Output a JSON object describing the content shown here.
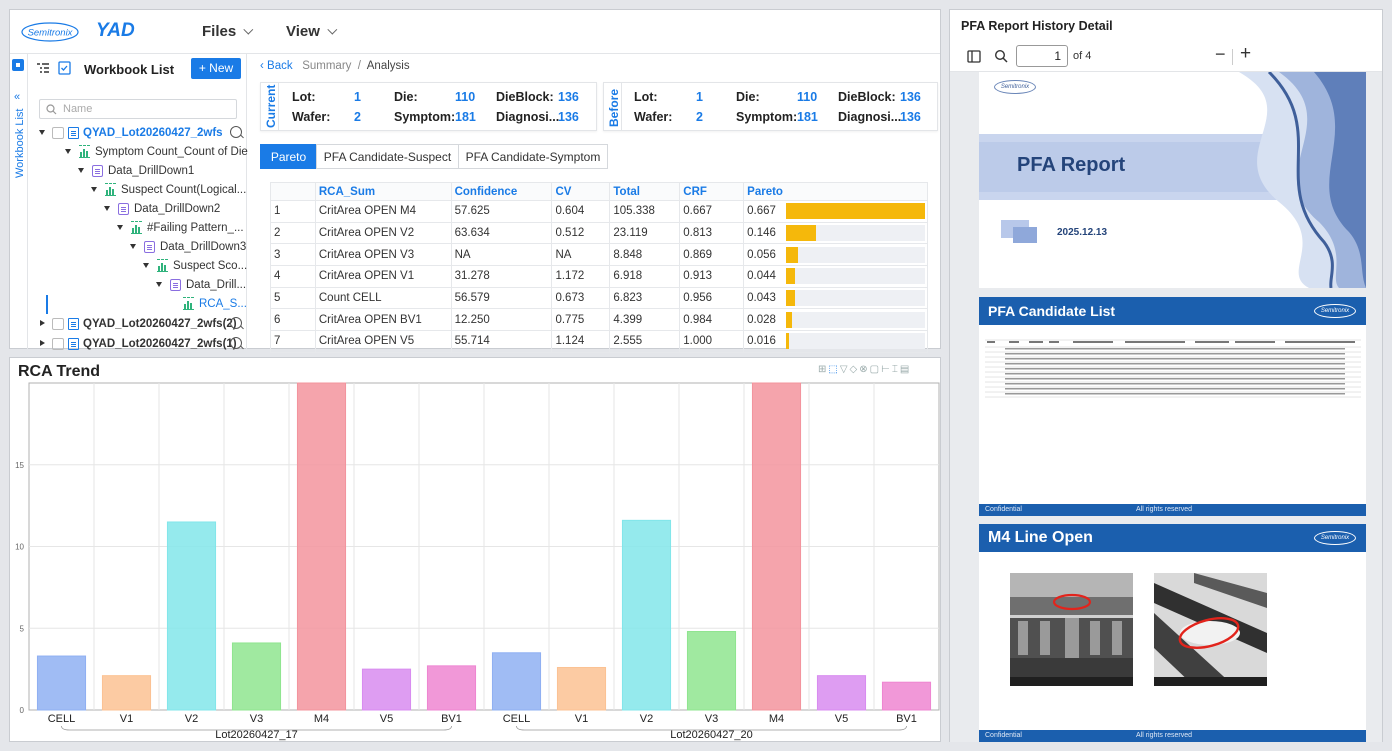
{
  "app": {
    "logo_text": "Semitronix",
    "brand": "YAD",
    "menus": [
      "Files",
      "View"
    ]
  },
  "sidebar": {
    "title": "Workbook List",
    "new_label": "+ New",
    "rail_label": "Workbook List",
    "search_placeholder": "Name",
    "tree": [
      {
        "label": "QYAD_Lot20260427_2wfs",
        "type": "doc"
      },
      {
        "label": "Symptom Count_Count of Die",
        "type": "bar"
      },
      {
        "label": "Data_DrillDown1",
        "type": "ds"
      },
      {
        "label": "Suspect Count(Logical...",
        "type": "bar"
      },
      {
        "label": "Data_DrillDown2",
        "type": "ds"
      },
      {
        "label": "#Failing Pattern_...",
        "type": "bar"
      },
      {
        "label": "Data_DrillDown3",
        "type": "ds"
      },
      {
        "label": "Suspect Sco...",
        "type": "bar"
      },
      {
        "label": "Data_Drill...",
        "type": "ds"
      },
      {
        "label": "RCA_S...",
        "type": "bar"
      },
      {
        "label": "QYAD_Lot20260427_2wfs(2)",
        "type": "doc"
      },
      {
        "label": "QYAD_Lot20260427_2wfs(1)",
        "type": "doc"
      }
    ]
  },
  "breadcrumb": {
    "back": "Back",
    "summary": "Summary",
    "sep": "/",
    "current": "Analysis"
  },
  "current": {
    "label": "Current",
    "lot_k": "Lot:",
    "lot_v": "1",
    "wafer_k": "Wafer:",
    "wafer_v": "2",
    "die_k": "Die:",
    "die_v": "110",
    "symptom_k": "Symptom:",
    "symptom_v": "181",
    "dieblock_k": "DieBlock:",
    "dieblock_v": "136",
    "diag_k": "Diagnosi...",
    "diag_v": "136"
  },
  "before": {
    "label": "Before",
    "lot_k": "Lot:",
    "lot_v": "1",
    "wafer_k": "Wafer:",
    "wafer_v": "2",
    "die_k": "Die:",
    "die_v": "110",
    "symptom_k": "Symptom:",
    "symptom_v": "181",
    "dieblock_k": "DieBlock:",
    "dieblock_v": "136",
    "diag_k": "Diagnosi...",
    "diag_v": "136"
  },
  "tabs": [
    "Pareto",
    "PFA Candidate-Suspect",
    "PFA Candidate-Symptom"
  ],
  "table": {
    "headers": [
      "",
      "RCA_Sum",
      "Confidence",
      "CV",
      "Total",
      "CRF",
      "Pareto",
      ""
    ],
    "rows": [
      {
        "n": "1",
        "rca": "CritArea OPEN M4",
        "conf": "57.625",
        "cv": "0.604",
        "total": "105.338",
        "crf": "0.667",
        "pareto": "0.667",
        "frac": 1.0
      },
      {
        "n": "2",
        "rca": "CritArea OPEN V2",
        "conf": "63.634",
        "cv": "0.512",
        "total": "23.119",
        "crf": "0.813",
        "pareto": "0.146",
        "frac": 0.219
      },
      {
        "n": "3",
        "rca": "CritArea OPEN V3",
        "conf": "NA",
        "cv": "NA",
        "total": "8.848",
        "crf": "0.869",
        "pareto": "0.056",
        "frac": 0.084
      },
      {
        "n": "4",
        "rca": "CritArea OPEN V1",
        "conf": "31.278",
        "cv": "1.172",
        "total": "6.918",
        "crf": "0.913",
        "pareto": "0.044",
        "frac": 0.066
      },
      {
        "n": "5",
        "rca": "Count CELL",
        "conf": "56.579",
        "cv": "0.673",
        "total": "6.823",
        "crf": "0.956",
        "pareto": "0.043",
        "frac": 0.064
      },
      {
        "n": "6",
        "rca": "CritArea OPEN BV1",
        "conf": "12.250",
        "cv": "0.775",
        "total": "4.399",
        "crf": "0.984",
        "pareto": "0.028",
        "frac": 0.042
      },
      {
        "n": "7",
        "rca": "CritArea OPEN V5",
        "conf": "55.714",
        "cv": "1.124",
        "total": "2.555",
        "crf": "1.000",
        "pareto": "0.016",
        "frac": 0.024
      }
    ]
  },
  "chart_data": {
    "type": "bar",
    "title": "RCA Trend",
    "ylim": [
      0,
      20
    ],
    "yticks": [
      0,
      5,
      10,
      15
    ],
    "groups": [
      {
        "name": "Lot20260427_17",
        "categories": [
          "CELL",
          "V1",
          "V2",
          "V3",
          "M4",
          "V5",
          "BV1"
        ],
        "values": [
          3.3,
          2.1,
          11.5,
          4.1,
          20,
          2.5,
          2.7
        ]
      },
      {
        "name": "Lot20260427_20",
        "categories": [
          "CELL",
          "V1",
          "V2",
          "V3",
          "M4",
          "V5",
          "BV1"
        ],
        "values": [
          3.5,
          2.6,
          11.6,
          4.8,
          20,
          2.1,
          1.7
        ]
      }
    ],
    "colors": {
      "CELL": "#8fb0f2",
      "V1": "#fbc293",
      "V2": "#82e6ea",
      "V3": "#8fe58f",
      "M4": "#f3949d",
      "V5": "#d88cf0",
      "BV1": "#ee86d1"
    }
  },
  "pdf": {
    "title": "PFA Report History Detail",
    "page": "1",
    "of": "of 4",
    "cover_title": "PFA Report",
    "cover_date": "2025.12.13",
    "cover_logo": "Semitronix",
    "p2_title": "PFA Candidate List",
    "p3_title": "M4 Line Open",
    "footer_left": "Confidential",
    "footer_right": "All rights reserved"
  }
}
